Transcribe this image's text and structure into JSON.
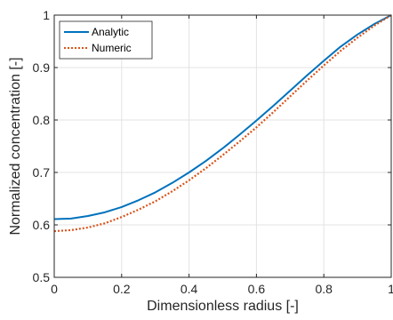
{
  "chart_data": {
    "type": "line",
    "title": "",
    "xlabel": "Dimensionless radius [-]",
    "ylabel": "Normalized concentration [-]",
    "xlim": [
      0,
      1
    ],
    "ylim": [
      0.5,
      1
    ],
    "xticks": [
      0,
      0.2,
      0.4,
      0.6,
      0.8,
      1
    ],
    "xtick_labels": [
      "0",
      "0.2",
      "0.4",
      "0.6",
      "0.8",
      "1"
    ],
    "yticks": [
      0.5,
      0.6,
      0.7,
      0.8,
      0.9,
      1
    ],
    "ytick_labels": [
      "0.5",
      "0.6",
      "0.7",
      "0.8",
      "0.9",
      "1"
    ],
    "grid": true,
    "legend_position": "top-left",
    "series": [
      {
        "name": "Analytic",
        "color": "#0072BD",
        "style": "solid",
        "x": [
          0,
          0.05,
          0.1,
          0.15,
          0.2,
          0.25,
          0.3,
          0.35,
          0.4,
          0.45,
          0.5,
          0.55,
          0.6,
          0.65,
          0.7,
          0.75,
          0.8,
          0.85,
          0.9,
          0.95,
          1
        ],
        "y": [
          0.611,
          0.612,
          0.617,
          0.624,
          0.634,
          0.647,
          0.662,
          0.68,
          0.7,
          0.722,
          0.746,
          0.772,
          0.799,
          0.827,
          0.856,
          0.885,
          0.913,
          0.94,
          0.963,
          0.983,
          1.0
        ]
      },
      {
        "name": "Numeric",
        "color": "#D95319",
        "style": "dotted",
        "x": [
          0,
          0.05,
          0.1,
          0.15,
          0.2,
          0.25,
          0.3,
          0.35,
          0.4,
          0.45,
          0.5,
          0.55,
          0.6,
          0.65,
          0.7,
          0.75,
          0.8,
          0.85,
          0.9,
          0.95,
          1
        ],
        "y": [
          0.588,
          0.59,
          0.595,
          0.603,
          0.615,
          0.629,
          0.645,
          0.664,
          0.685,
          0.708,
          0.733,
          0.759,
          0.786,
          0.815,
          0.845,
          0.875,
          0.904,
          0.932,
          0.957,
          0.98,
          1.0
        ]
      }
    ]
  }
}
